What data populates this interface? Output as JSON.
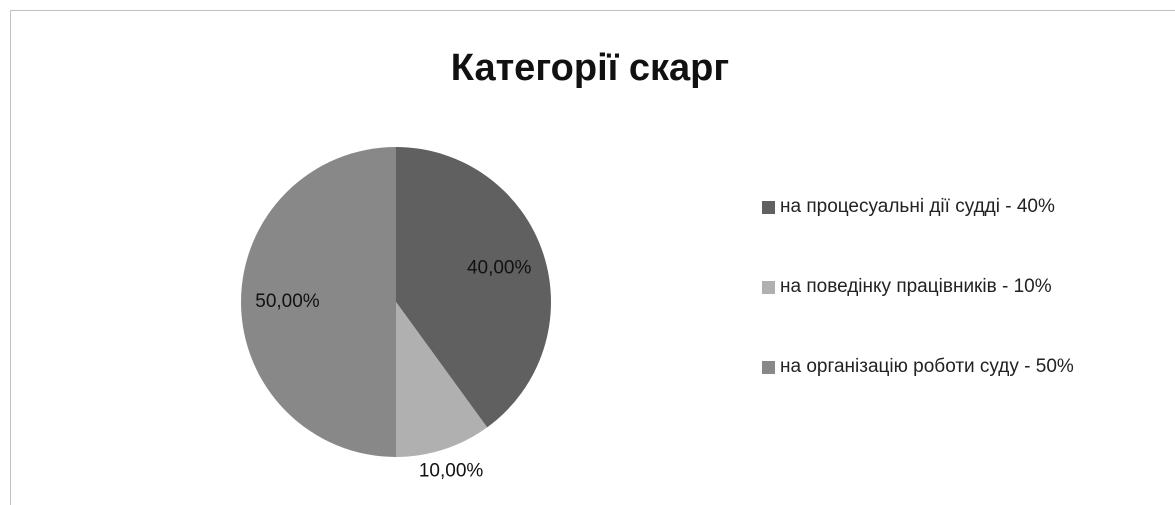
{
  "chart_data": {
    "type": "pie",
    "title": "Категорії скарг",
    "categories": [
      "на процесуальні дії судді - 40%",
      "на поведінку працівників - 10%",
      "на організацію роботи суду - 50%"
    ],
    "values": [
      40,
      10,
      50
    ],
    "value_labels": [
      "40,00%",
      "10,00%",
      "50,00%"
    ],
    "colors": [
      "#606060",
      "#b0b0b0",
      "#888888"
    ],
    "legend": "right"
  }
}
